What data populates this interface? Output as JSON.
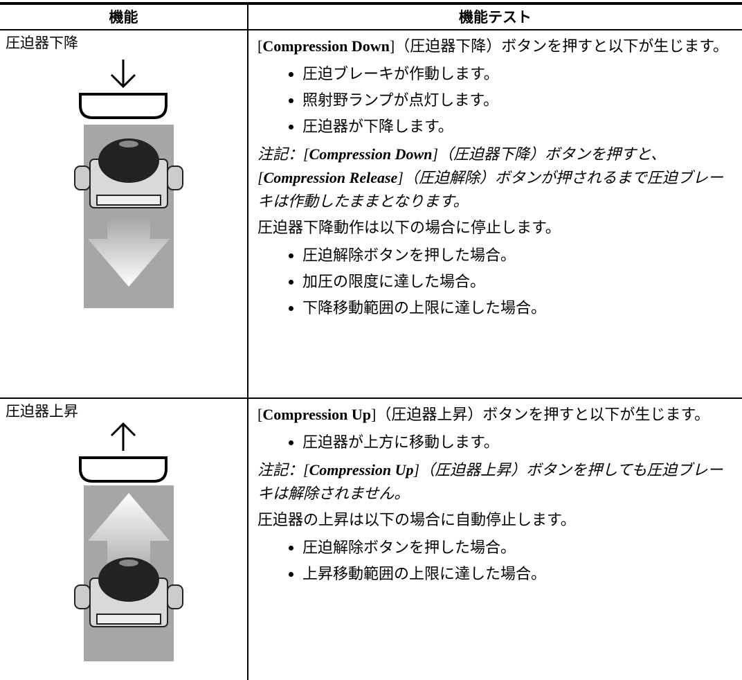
{
  "table": {
    "header": [
      "機能",
      "機能テスト"
    ],
    "rows": [
      {
        "function": "圧迫器下降",
        "intro": [
          "[",
          "Compression Down",
          "]（圧迫器下降）ボタンを押すと以下が生じます。"
        ],
        "bullets": [
          "圧迫ブレーキが作動します。",
          "照射野ランプが点灯します。",
          "圧迫器が下降します。"
        ],
        "note": [
          "注記：[",
          "Compression Down",
          "]（圧迫器下降）ボタンを押すと、[",
          "Compression Release",
          "]（圧迫解除）ボタンが押されるまで圧迫ブレーキは作動したままとなります。"
        ],
        "stop": "圧迫器下降動作は以下の場合に停止します。",
        "stop_bullets": [
          "圧迫解除ボタンを押した場合。",
          "加圧の限度に達した場合。",
          "下降移動範囲の上限に達した場合。"
        ]
      },
      {
        "function": "圧迫器上昇",
        "intro": [
          "[",
          "Compression Up",
          "]（圧迫器上昇）ボタンを押すと以下が生じます。"
        ],
        "bullets": [
          "圧迫器が上方に移動します。"
        ],
        "note": [
          "注記：[",
          "Compression Up",
          "]（圧迫器上昇）ボタンを押しても圧迫ブレーキは解除されません。"
        ],
        "stop": "圧迫器の上昇は以下の場合に自動停止します。",
        "stop_bullets": [
          "圧迫解除ボタンを押した場合。",
          "上昇移動範囲の上限に達した場合。"
        ]
      }
    ]
  }
}
